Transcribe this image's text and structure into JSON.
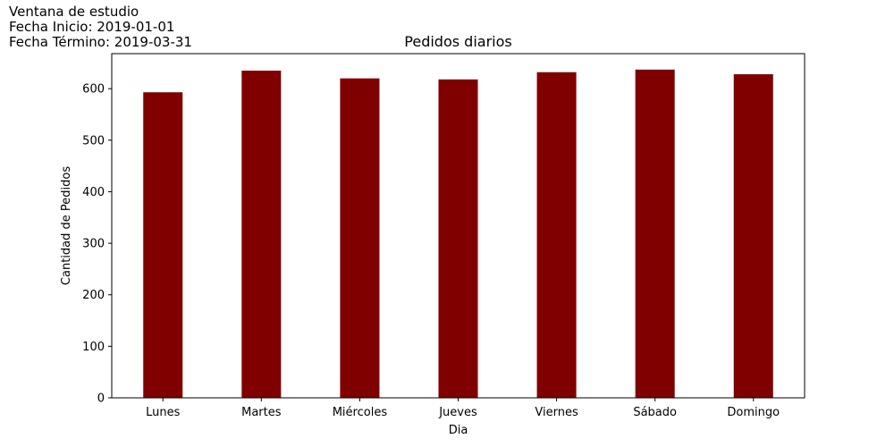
{
  "annotation": {
    "lines": [
      "Ventana de estudio",
      "Fecha Inicio: 2019-01-01",
      "Fecha Término: 2019-03-31"
    ]
  },
  "chart_data": {
    "type": "bar",
    "title": "Pedidos diarios",
    "xlabel": "Dia",
    "ylabel": "Cantidad de Pedidos",
    "categories": [
      "Lunes",
      "Martes",
      "Miércoles",
      "Jueves",
      "Viernes",
      "Sábado",
      "Domingo"
    ],
    "values": [
      593,
      635,
      620,
      618,
      632,
      637,
      628
    ],
    "ylim": [
      0,
      668
    ],
    "yticks": [
      0,
      100,
      200,
      300,
      400,
      500,
      600
    ],
    "bar_color": "#800000",
    "grid": false
  }
}
